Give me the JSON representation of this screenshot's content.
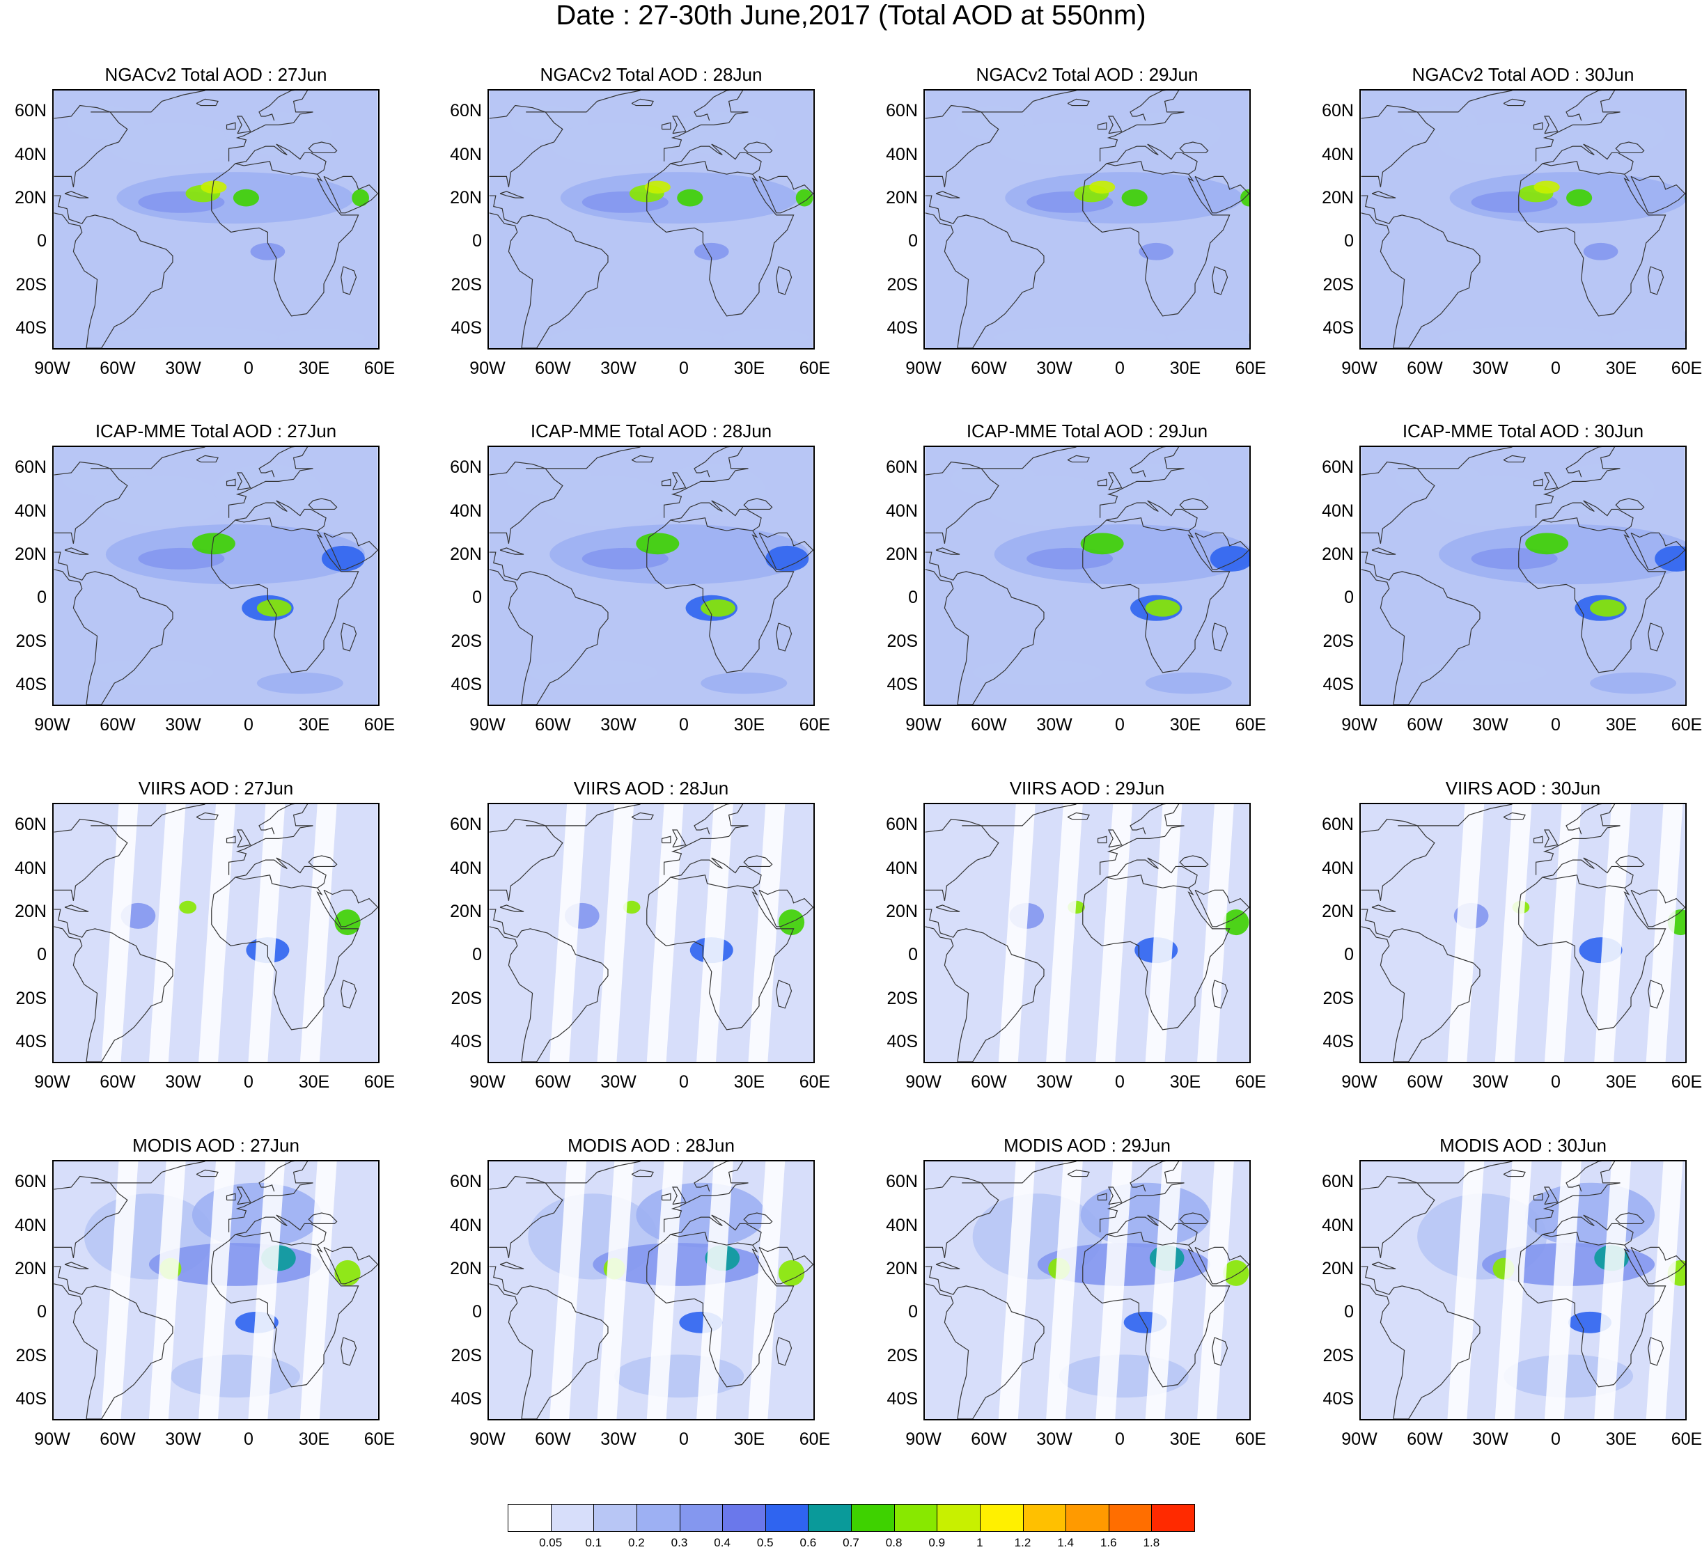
{
  "title": "Date : 27-30th June,2017 (Total AOD at 550nm)",
  "rows": [
    {
      "product": "NGACv2",
      "panels": [
        "NGACv2 Total AOD : 27Jun",
        "NGACv2 Total AOD : 28Jun",
        "NGACv2 Total AOD : 29Jun",
        "NGACv2 Total AOD : 30Jun"
      ]
    },
    {
      "product": "ICAP-MME",
      "panels": [
        "ICAP-MME Total AOD : 27Jun",
        "ICAP-MME Total AOD : 28Jun",
        "ICAP-MME Total AOD : 29Jun",
        "ICAP-MME Total AOD : 30Jun"
      ]
    },
    {
      "product": "VIIRS",
      "panels": [
        "VIIRS AOD : 27Jun",
        "VIIRS AOD : 28Jun",
        "VIIRS AOD : 29Jun",
        "VIIRS AOD : 30Jun"
      ]
    },
    {
      "product": "MODIS",
      "panels": [
        "MODIS AOD : 27Jun",
        "MODIS AOD : 28Jun",
        "MODIS AOD : 29Jun",
        "MODIS AOD : 30Jun"
      ]
    }
  ],
  "lat_labels": [
    "60N",
    "40N",
    "20N",
    "0",
    "20S",
    "40S"
  ],
  "lon_labels": [
    "90W",
    "60W",
    "30W",
    "0",
    "30E",
    "60E"
  ],
  "lat_range": [
    -50,
    70
  ],
  "lon_range": [
    -90,
    60
  ],
  "colorbar": {
    "labels": [
      "0.05",
      "0.1",
      "0.2",
      "0.3",
      "0.4",
      "0.5",
      "0.6",
      "0.7",
      "0.8",
      "0.9",
      "1",
      "1.2",
      "1.4",
      "1.6",
      "1.8"
    ],
    "colors": [
      "#ffffff",
      "#d7defa",
      "#b8c6f5",
      "#9db0f3",
      "#8497ef",
      "#6a78eb",
      "#2f64f0",
      "#0a9a9a",
      "#3ed200",
      "#88e800",
      "#c8f000",
      "#fff000",
      "#ffc000",
      "#ff9a00",
      "#ff6e00",
      "#ff2a00"
    ]
  }
}
